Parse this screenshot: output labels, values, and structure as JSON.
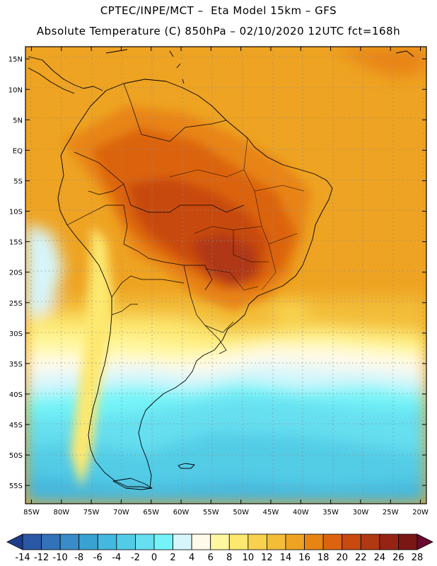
{
  "header": {
    "line1": "CPTEC/INPE/MCT –  Eta Model 15km – GFS",
    "line2": "Absolute Temperature (C) 850hPa – 02/10/2020 12UTC fct=168h"
  },
  "map": {
    "variable": "Absolute Temperature",
    "units": "C",
    "level": "850hPa",
    "lon_range": [
      -86,
      -19
    ],
    "lat_range": [
      -58,
      17
    ],
    "lat_ticks": [
      {
        "value": 15,
        "label": "15N"
      },
      {
        "value": 10,
        "label": "10N"
      },
      {
        "value": 5,
        "label": "5N"
      },
      {
        "value": 0,
        "label": "EQ"
      },
      {
        "value": -5,
        "label": "5S"
      },
      {
        "value": -10,
        "label": "10S"
      },
      {
        "value": -15,
        "label": "15S"
      },
      {
        "value": -20,
        "label": "20S"
      },
      {
        "value": -25,
        "label": "25S"
      },
      {
        "value": -30,
        "label": "30S"
      },
      {
        "value": -35,
        "label": "35S"
      },
      {
        "value": -40,
        "label": "40S"
      },
      {
        "value": -45,
        "label": "45S"
      },
      {
        "value": -50,
        "label": "50S"
      },
      {
        "value": -55,
        "label": "55S"
      }
    ],
    "lon_ticks": [
      {
        "value": -85,
        "label": "85W"
      },
      {
        "value": -80,
        "label": "80W"
      },
      {
        "value": -75,
        "label": "75W"
      },
      {
        "value": -70,
        "label": "70W"
      },
      {
        "value": -65,
        "label": "65W"
      },
      {
        "value": -60,
        "label": "60W"
      },
      {
        "value": -55,
        "label": "55W"
      },
      {
        "value": -50,
        "label": "50W"
      },
      {
        "value": -45,
        "label": "45W"
      },
      {
        "value": -40,
        "label": "40W"
      },
      {
        "value": -35,
        "label": "35W"
      },
      {
        "value": -30,
        "label": "30W"
      },
      {
        "value": -25,
        "label": "25W"
      },
      {
        "value": -20,
        "label": "20W"
      }
    ]
  },
  "colorbar": {
    "levels": [
      "-14",
      "-12",
      "-10",
      "-8",
      "-6",
      "-4",
      "-2",
      "0",
      "2",
      "4",
      "6",
      "8",
      "10",
      "12",
      "14",
      "16",
      "18",
      "20",
      "22",
      "24",
      "26",
      "28"
    ],
    "colors": [
      "#1e3c8c",
      "#2a58a6",
      "#3272b8",
      "#3a8cc8",
      "#3aa2d2",
      "#44b8de",
      "#52cce6",
      "#66dff0",
      "#74f4f8",
      "#d6f6fc",
      "#fffaea",
      "#fff8a0",
      "#fde870",
      "#f8d24e",
      "#f3bd38",
      "#eea322",
      "#e88412",
      "#dc6410",
      "#c84a10",
      "#b03812",
      "#962414",
      "#7a1614",
      "#6a0a30"
    ]
  }
}
